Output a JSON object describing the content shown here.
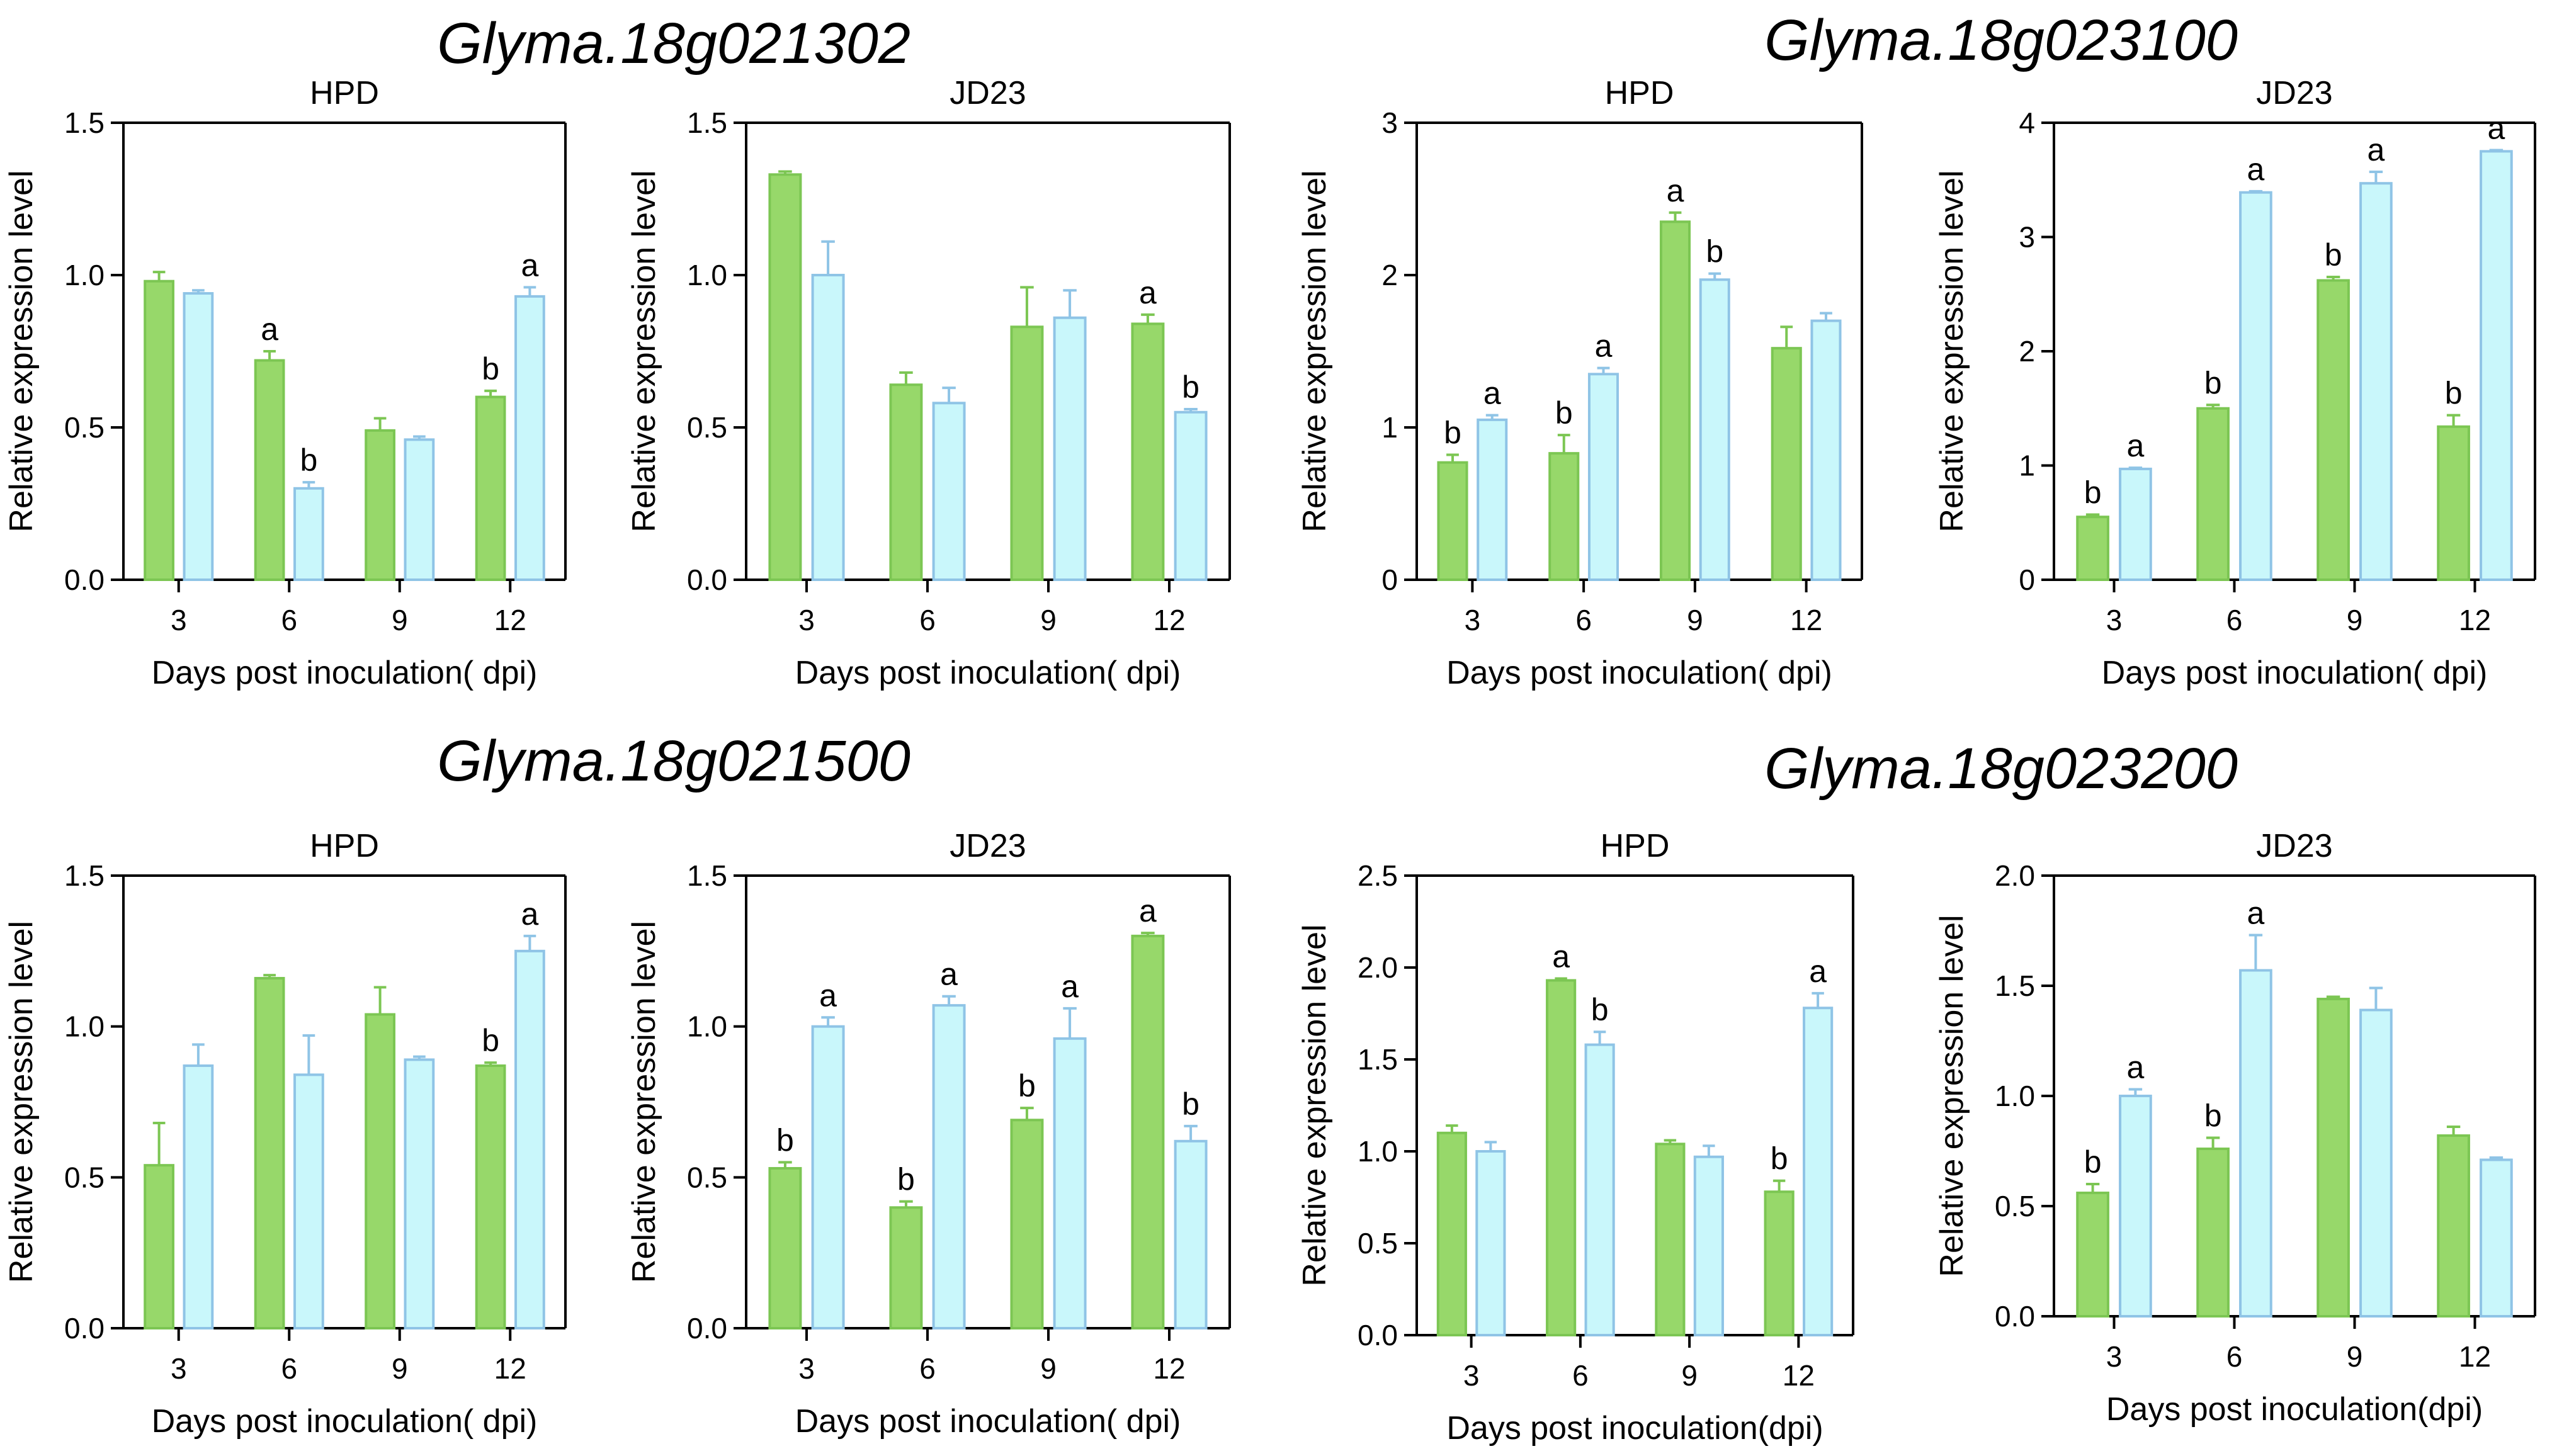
{
  "colors": {
    "series_a": "#97d86a",
    "series_a_edge": "#7cc653",
    "series_b": "#c9f7fb",
    "series_b_edge": "#8fc4e6"
  },
  "chart_data": [
    {
      "type": "bar",
      "gene": "Glyma.18g021302",
      "title": "HPD",
      "xlabel": "Days post inoculation( dpi)",
      "ylabel": "Relative expression level",
      "categories": [
        "3",
        "6",
        "9",
        "12"
      ],
      "ylim": [
        0,
        1.5
      ],
      "yticks": [
        "0.0",
        "0.5",
        "1.0",
        "1.5"
      ],
      "series": [
        {
          "values": [
            0.98,
            0.72,
            0.49,
            0.6
          ],
          "errors": [
            0.03,
            0.03,
            0.04,
            0.02
          ],
          "labels": [
            "",
            "a",
            "",
            "b"
          ]
        },
        {
          "values": [
            0.94,
            0.3,
            0.46,
            0.93
          ],
          "errors": [
            0.01,
            0.02,
            0.01,
            0.03
          ],
          "labels": [
            "",
            "b",
            "",
            "a"
          ]
        }
      ]
    },
    {
      "type": "bar",
      "gene": "",
      "title": "JD23",
      "xlabel": "Days post inoculation( dpi)",
      "ylabel": "Relative expression level",
      "categories": [
        "3",
        "6",
        "9",
        "12"
      ],
      "ylim": [
        0,
        1.5
      ],
      "yticks": [
        "0.0",
        "0.5",
        "1.0",
        "1.5"
      ],
      "series": [
        {
          "values": [
            1.33,
            0.64,
            0.83,
            0.84
          ],
          "errors": [
            0.01,
            0.04,
            0.13,
            0.03
          ],
          "labels": [
            "",
            "",
            "",
            "a"
          ]
        },
        {
          "values": [
            1.0,
            0.58,
            0.86,
            0.55
          ],
          "errors": [
            0.11,
            0.05,
            0.09,
            0.01
          ],
          "labels": [
            "",
            "",
            "",
            "b"
          ]
        }
      ]
    },
    {
      "type": "bar",
      "gene": "Glyma.18g023100",
      "title": "HPD",
      "xlabel": "Days post inoculation( dpi)",
      "ylabel": "Relative expression level",
      "categories": [
        "3",
        "6",
        "9",
        "12"
      ],
      "ylim": [
        0,
        3
      ],
      "yticks": [
        "0",
        "1",
        "2",
        "3"
      ],
      "series": [
        {
          "values": [
            0.77,
            0.83,
            2.35,
            1.52
          ],
          "errors": [
            0.05,
            0.12,
            0.06,
            0.14
          ],
          "labels": [
            "b",
            "b",
            "a",
            ""
          ]
        },
        {
          "values": [
            1.05,
            1.35,
            1.97,
            1.7
          ],
          "errors": [
            0.03,
            0.04,
            0.04,
            0.05
          ],
          "labels": [
            "a",
            "a",
            "b",
            ""
          ]
        }
      ]
    },
    {
      "type": "bar",
      "gene": "",
      "title": "JD23",
      "xlabel": "Days post inoculation( dpi)",
      "ylabel": "Relative expression level",
      "categories": [
        "3",
        "6",
        "9",
        "12"
      ],
      "ylim": [
        0,
        4
      ],
      "yticks": [
        "0",
        "1",
        "2",
        "3",
        "4"
      ],
      "series": [
        {
          "values": [
            0.55,
            1.5,
            2.62,
            1.34
          ],
          "errors": [
            0.02,
            0.03,
            0.03,
            0.1
          ],
          "labels": [
            "b",
            "b",
            "b",
            "b"
          ]
        },
        {
          "values": [
            0.97,
            3.39,
            3.47,
            3.75
          ],
          "errors": [
            0.01,
            0.01,
            0.1,
            0.01
          ],
          "labels": [
            "a",
            "a",
            "a",
            "a"
          ]
        }
      ]
    },
    {
      "type": "bar",
      "gene": "Glyma.18g021500",
      "title": "HPD",
      "xlabel": "Days post inoculation( dpi)",
      "ylabel": "Relative expression level",
      "categories": [
        "3",
        "6",
        "9",
        "12"
      ],
      "ylim": [
        0,
        1.5
      ],
      "yticks": [
        "0.0",
        "0.5",
        "1.0",
        "1.5"
      ],
      "series": [
        {
          "values": [
            0.54,
            1.16,
            1.04,
            0.87
          ],
          "errors": [
            0.14,
            0.01,
            0.09,
            0.01
          ],
          "labels": [
            "",
            "",
            "",
            "b"
          ]
        },
        {
          "values": [
            0.87,
            0.84,
            0.89,
            1.25
          ],
          "errors": [
            0.07,
            0.13,
            0.01,
            0.05
          ],
          "labels": [
            "",
            "",
            "",
            "a"
          ]
        }
      ]
    },
    {
      "type": "bar",
      "gene": "",
      "title": "JD23",
      "xlabel": "Days post inoculation( dpi)",
      "ylabel": "Relative expression level",
      "categories": [
        "3",
        "6",
        "9",
        "12"
      ],
      "ylim": [
        0,
        1.5
      ],
      "yticks": [
        "0.0",
        "0.5",
        "1.0",
        "1.5"
      ],
      "series": [
        {
          "values": [
            0.53,
            0.4,
            0.69,
            1.3
          ],
          "errors": [
            0.02,
            0.02,
            0.04,
            0.01
          ],
          "labels": [
            "b",
            "b",
            "b",
            "a"
          ]
        },
        {
          "values": [
            1.0,
            1.07,
            0.96,
            0.62
          ],
          "errors": [
            0.03,
            0.03,
            0.1,
            0.05
          ],
          "labels": [
            "a",
            "a",
            "a",
            "b"
          ]
        }
      ]
    },
    {
      "type": "bar",
      "gene": "Glyma.18g023200",
      "title": "HPD",
      "xlabel": "Days post inoculation(dpi)",
      "ylabel": "Relative expression level",
      "categories": [
        "3",
        "6",
        "9",
        "12"
      ],
      "ylim": [
        0,
        2.5
      ],
      "yticks": [
        "0.0",
        "0.5",
        "1.0",
        "1.5",
        "2.0",
        "2.5"
      ],
      "series": [
        {
          "values": [
            1.1,
            1.93,
            1.04,
            0.78
          ],
          "errors": [
            0.04,
            0.01,
            0.02,
            0.06
          ],
          "labels": [
            "",
            "a",
            "",
            "b"
          ]
        },
        {
          "values": [
            1.0,
            1.58,
            0.97,
            1.78
          ],
          "errors": [
            0.05,
            0.07,
            0.06,
            0.08
          ],
          "labels": [
            "",
            "b",
            "",
            "a"
          ]
        }
      ]
    },
    {
      "type": "bar",
      "gene": "",
      "title": "JD23",
      "xlabel": "Days post inoculation(dpi)",
      "ylabel": "Relative expression level",
      "categories": [
        "3",
        "6",
        "9",
        "12"
      ],
      "ylim": [
        0,
        2
      ],
      "yticks": [
        "0.0",
        "0.5",
        "1.0",
        "1.5",
        "2.0"
      ],
      "series": [
        {
          "values": [
            0.56,
            0.76,
            1.44,
            0.82
          ],
          "errors": [
            0.04,
            0.05,
            0.01,
            0.04
          ],
          "labels": [
            "b",
            "b",
            "",
            ""
          ]
        },
        {
          "values": [
            1.0,
            1.57,
            1.39,
            0.71
          ],
          "errors": [
            0.03,
            0.16,
            0.1,
            0.01
          ],
          "labels": [
            "a",
            "a",
            "",
            ""
          ]
        }
      ]
    }
  ]
}
